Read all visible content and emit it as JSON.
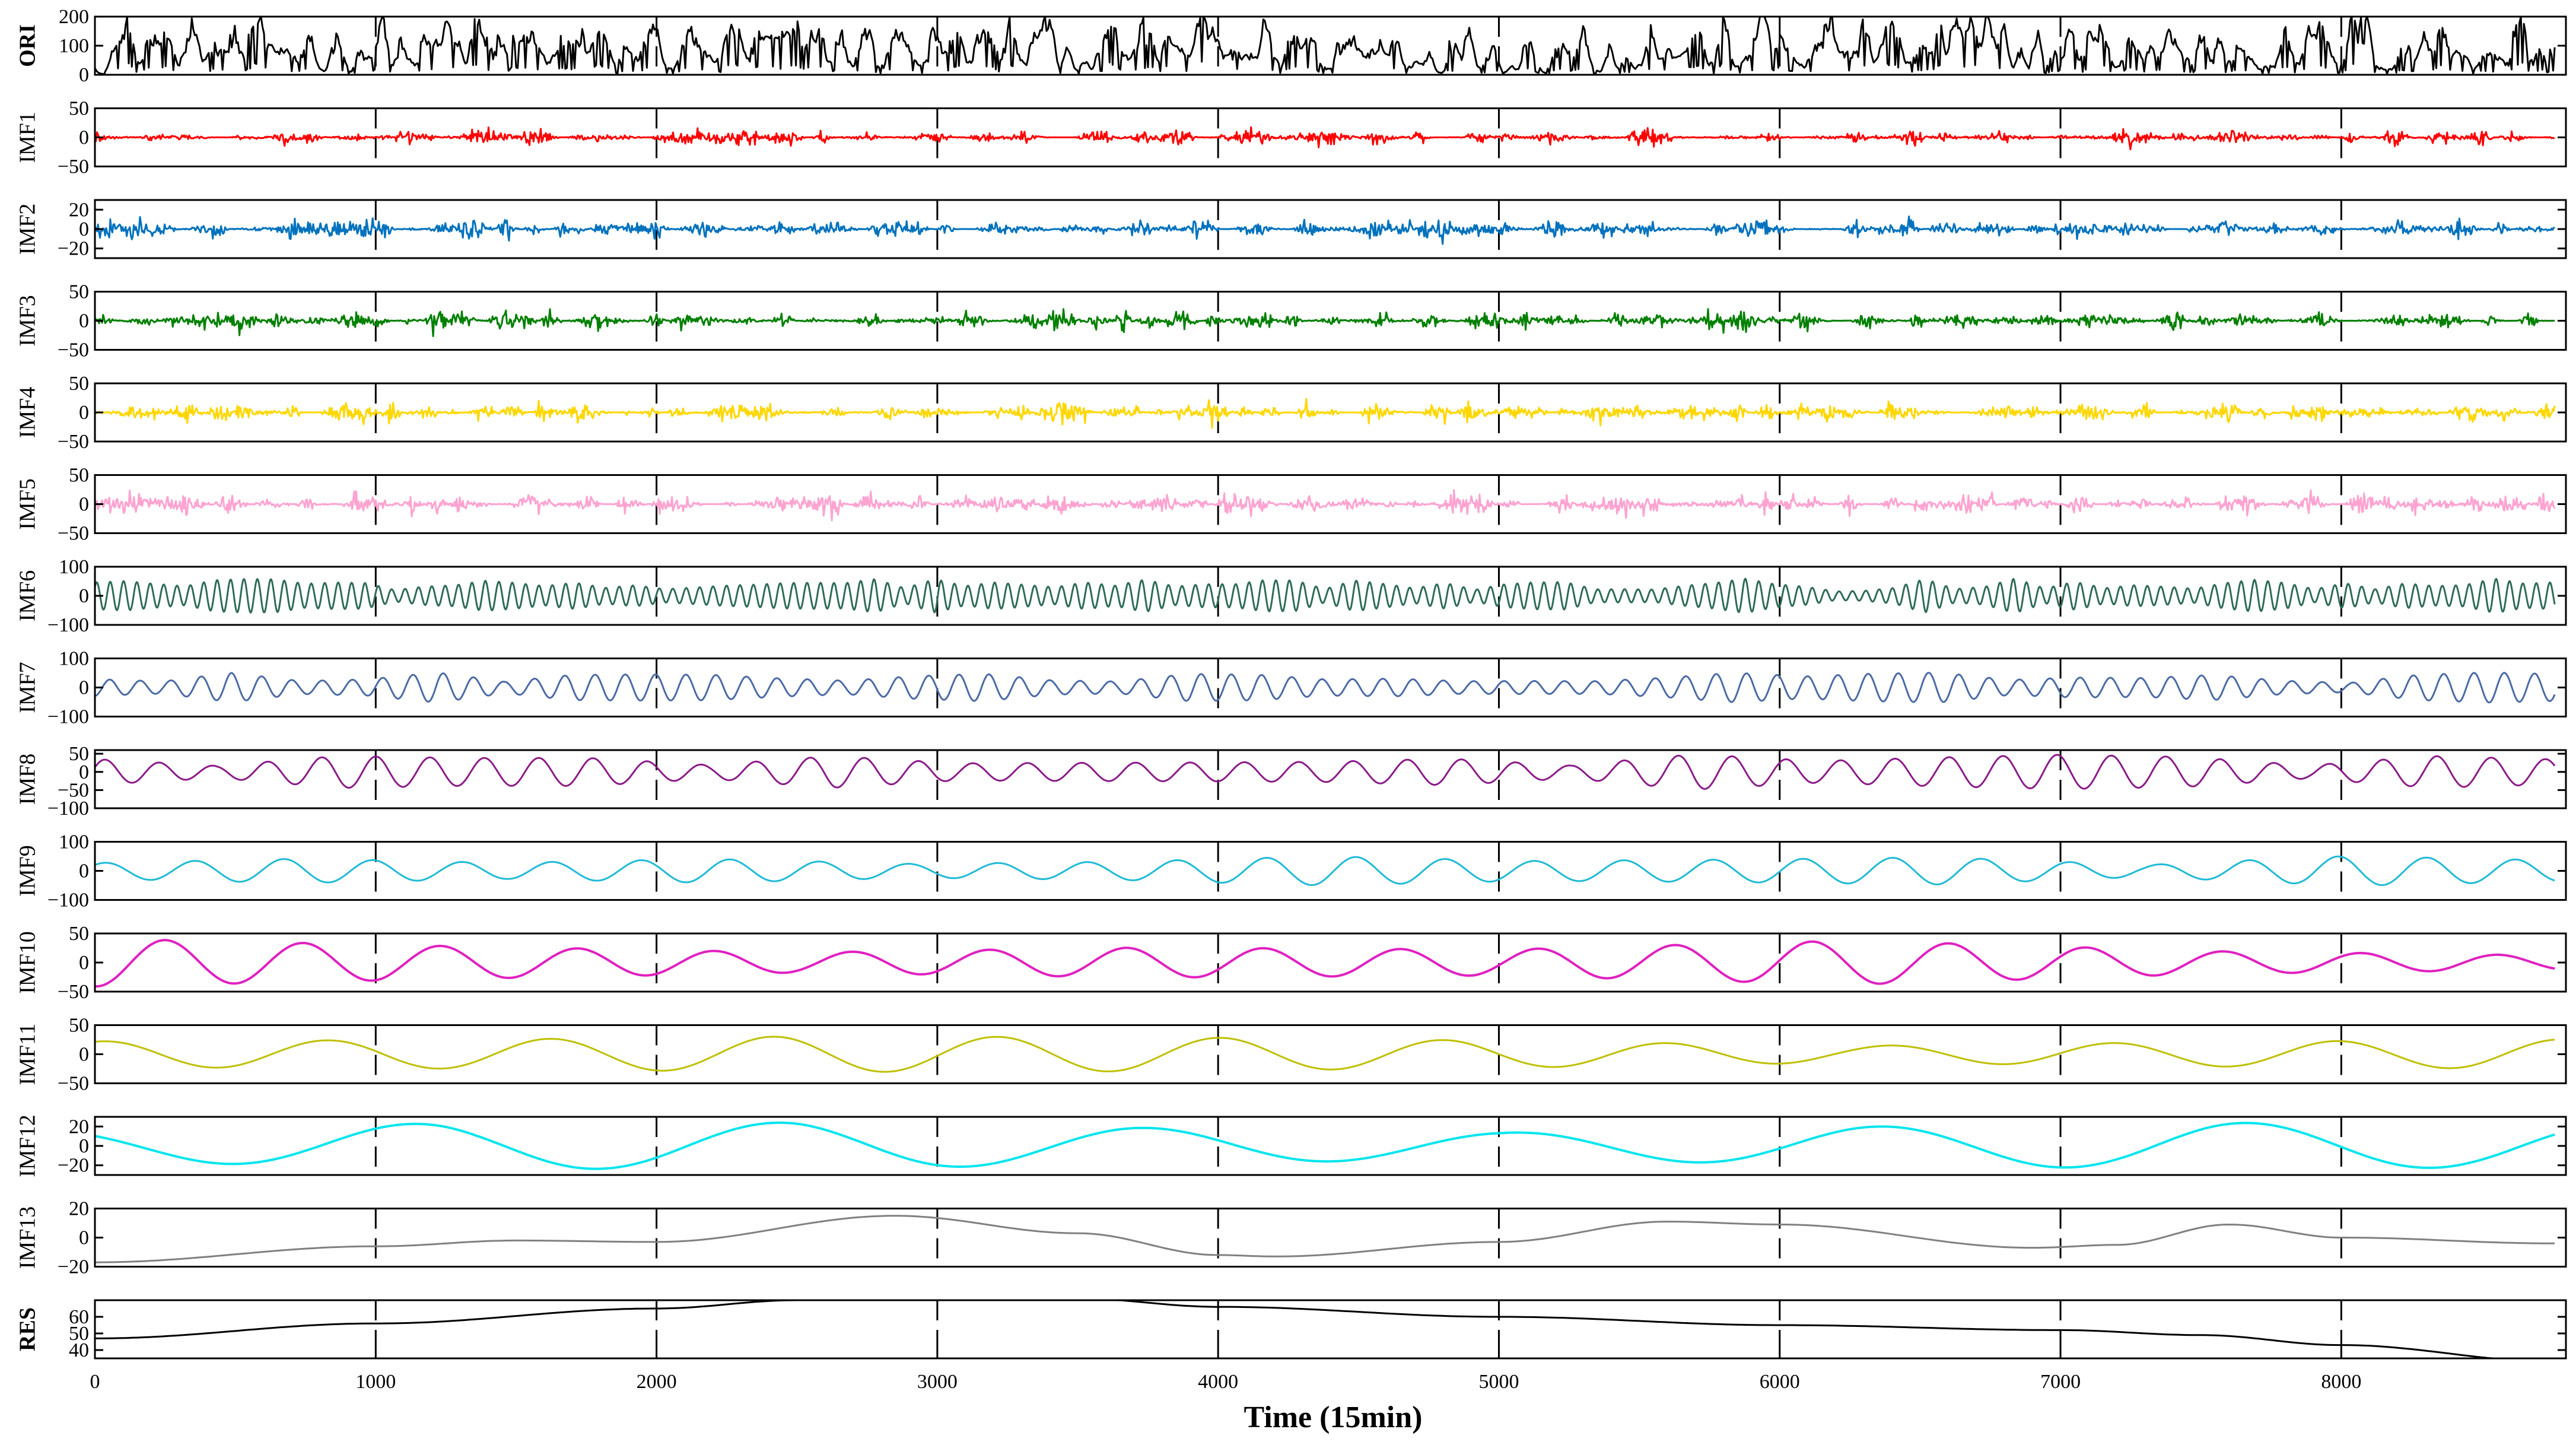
{
  "chart_data": {
    "type": "line",
    "title": "",
    "xlabel": "Time (15min)",
    "xlim": [
      0,
      8800
    ],
    "x_ticks": [
      0,
      1000,
      2000,
      3000,
      4000,
      5000,
      6000,
      7000,
      8000
    ],
    "n_points": 8760,
    "grid": "dashed vertical lines at x ticks",
    "panels": [
      {
        "name": "ORI",
        "bold": true,
        "color": "#000000",
        "ylim": [
          0,
          200
        ],
        "yticks": [
          0,
          100,
          200
        ],
        "signal": "raw load series",
        "amplitude": 200
      },
      {
        "name": "IMF1",
        "bold": false,
        "color": "#ff0000",
        "ylim": [
          -50,
          50
        ],
        "yticks": [
          -50,
          0,
          50
        ],
        "signal": "high-frequency noise bursts",
        "amplitude": 35
      },
      {
        "name": "IMF2",
        "bold": false,
        "color": "#0072bd",
        "ylim": [
          -30,
          30
        ],
        "yticks": [
          -20,
          0,
          20
        ],
        "signal": "high-frequency noise bursts",
        "amplitude": 25
      },
      {
        "name": "IMF3",
        "bold": false,
        "color": "#008000",
        "ylim": [
          -50,
          50
        ],
        "yticks": [
          -50,
          0,
          50
        ],
        "signal": "high-frequency noise bursts",
        "amplitude": 38
      },
      {
        "name": "IMF4",
        "bold": false,
        "color": "#ffd700",
        "ylim": [
          -50,
          50
        ],
        "yticks": [
          -50,
          0,
          50
        ],
        "signal": "high-frequency noise bursts",
        "amplitude": 40
      },
      {
        "name": "IMF5",
        "bold": false,
        "color": "#ffa3d1",
        "ylim": [
          -50,
          50
        ],
        "yticks": [
          -50,
          0,
          50
        ],
        "signal": "high-frequency noise bursts",
        "amplitude": 45
      },
      {
        "name": "IMF6",
        "bold": false,
        "color": "#2e6b57",
        "ylim": [
          -100,
          100
        ],
        "yticks": [
          -100,
          0,
          100
        ],
        "signal": "medium-frequency oscillation",
        "amplitude": 60
      },
      {
        "name": "IMF7",
        "bold": false,
        "color": "#4a6aa5",
        "ylim": [
          -100,
          100
        ],
        "yticks": [
          -100,
          0,
          100
        ],
        "signal": "medium-frequency oscillation",
        "amplitude": 55
      },
      {
        "name": "IMF8",
        "bold": false,
        "color": "#8b1a89",
        "ylim": [
          -100,
          60
        ],
        "yticks": [
          -100,
          -50,
          0,
          50
        ],
        "signal": "oscillation",
        "amplitude": 50
      },
      {
        "name": "IMF9",
        "bold": false,
        "color": "#1fbad6",
        "ylim": [
          -100,
          100
        ],
        "yticks": [
          -100,
          0,
          100
        ],
        "signal": "oscillation",
        "amplitude": 60
      },
      {
        "name": "IMF10",
        "bold": false,
        "color": "#e020c0",
        "ylim": [
          -50,
          50
        ],
        "yticks": [
          -50,
          0,
          50
        ],
        "signal": "oscillation",
        "amplitude": 42
      },
      {
        "name": "IMF11",
        "bold": false,
        "color": "#bfbf00",
        "ylim": [
          -50,
          50
        ],
        "yticks": [
          -50,
          0,
          50
        ],
        "signal": "oscillation",
        "amplitude": 32
      },
      {
        "name": "IMF12",
        "bold": false,
        "color": "#00e5ee",
        "ylim": [
          -30,
          30
        ],
        "yticks": [
          -20,
          0,
          20
        ],
        "signal": "slow oscillation",
        "amplitude": 25
      },
      {
        "name": "IMF13",
        "bold": false,
        "color": "#808080",
        "ylim": [
          -20,
          20
        ],
        "yticks": [
          -20,
          0,
          20
        ],
        "signal": "very slow trend oscillation",
        "amplitude": 16
      },
      {
        "name": "RES",
        "bold": true,
        "color": "#000000",
        "ylim": [
          35,
          70
        ],
        "yticks": [
          40,
          50,
          60
        ],
        "signal": "residual trend",
        "amplitude": 0
      }
    ],
    "res_trend": {
      "x": [
        0,
        1000,
        2000,
        2500,
        3000,
        3500,
        4000,
        5000,
        6000,
        7000,
        7500,
        8000,
        8760
      ],
      "y": [
        47,
        56,
        65,
        70,
        72,
        71,
        66,
        60,
        55,
        52,
        49,
        43,
        33
      ]
    },
    "imf13_trend": {
      "x": [
        0,
        1000,
        1500,
        2000,
        2850,
        3500,
        4000,
        4200,
        5000,
        5600,
        6000,
        6900,
        7200,
        7600,
        8000,
        8760
      ],
      "y": [
        -17,
        -6,
        -2,
        -3,
        15,
        3,
        -12,
        -13,
        -3,
        11,
        9,
        -7,
        -5,
        9,
        0,
        -4
      ]
    }
  }
}
